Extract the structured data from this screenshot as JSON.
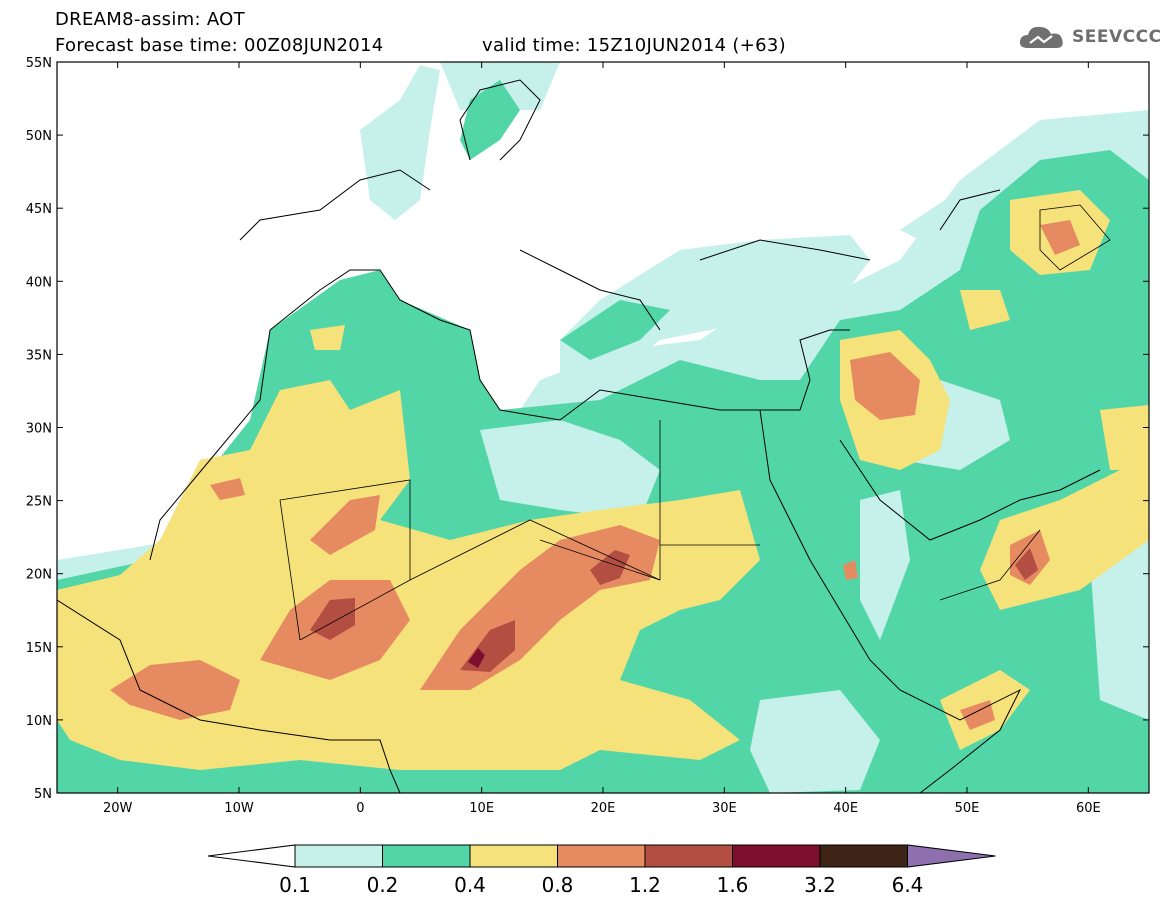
{
  "header": {
    "title": "DREAM8-assim: AOT",
    "base_time": "Forecast base time: 00Z08JUN2014",
    "valid_time": "valid time: 15Z10JUN2014 (+63)"
  },
  "logo": {
    "text": "SEEVCCC",
    "icon": "cloud-icon"
  },
  "map": {
    "projection": "lat-lon",
    "lon_range": [
      -25,
      65
    ],
    "lat_range": [
      5,
      55
    ],
    "lat_labels": [
      "55N",
      "50N",
      "45N",
      "40N",
      "35N",
      "30N",
      "25N",
      "20N",
      "15N",
      "10N",
      "5N"
    ],
    "lon_labels": [
      "20W",
      "10W",
      "0",
      "10E",
      "20E",
      "30E",
      "40E",
      "50E",
      "60E"
    ]
  },
  "colorbar": {
    "levels": [
      "0.1",
      "0.2",
      "0.4",
      "0.8",
      "1.2",
      "1.6",
      "3.2",
      "6.4"
    ],
    "colors": [
      "#c6f0ea",
      "#52d6a8",
      "#f6e27a",
      "#e68a62",
      "#b34e42",
      "#7c0f2e",
      "#3e2416",
      "#8e70ae"
    ]
  }
}
